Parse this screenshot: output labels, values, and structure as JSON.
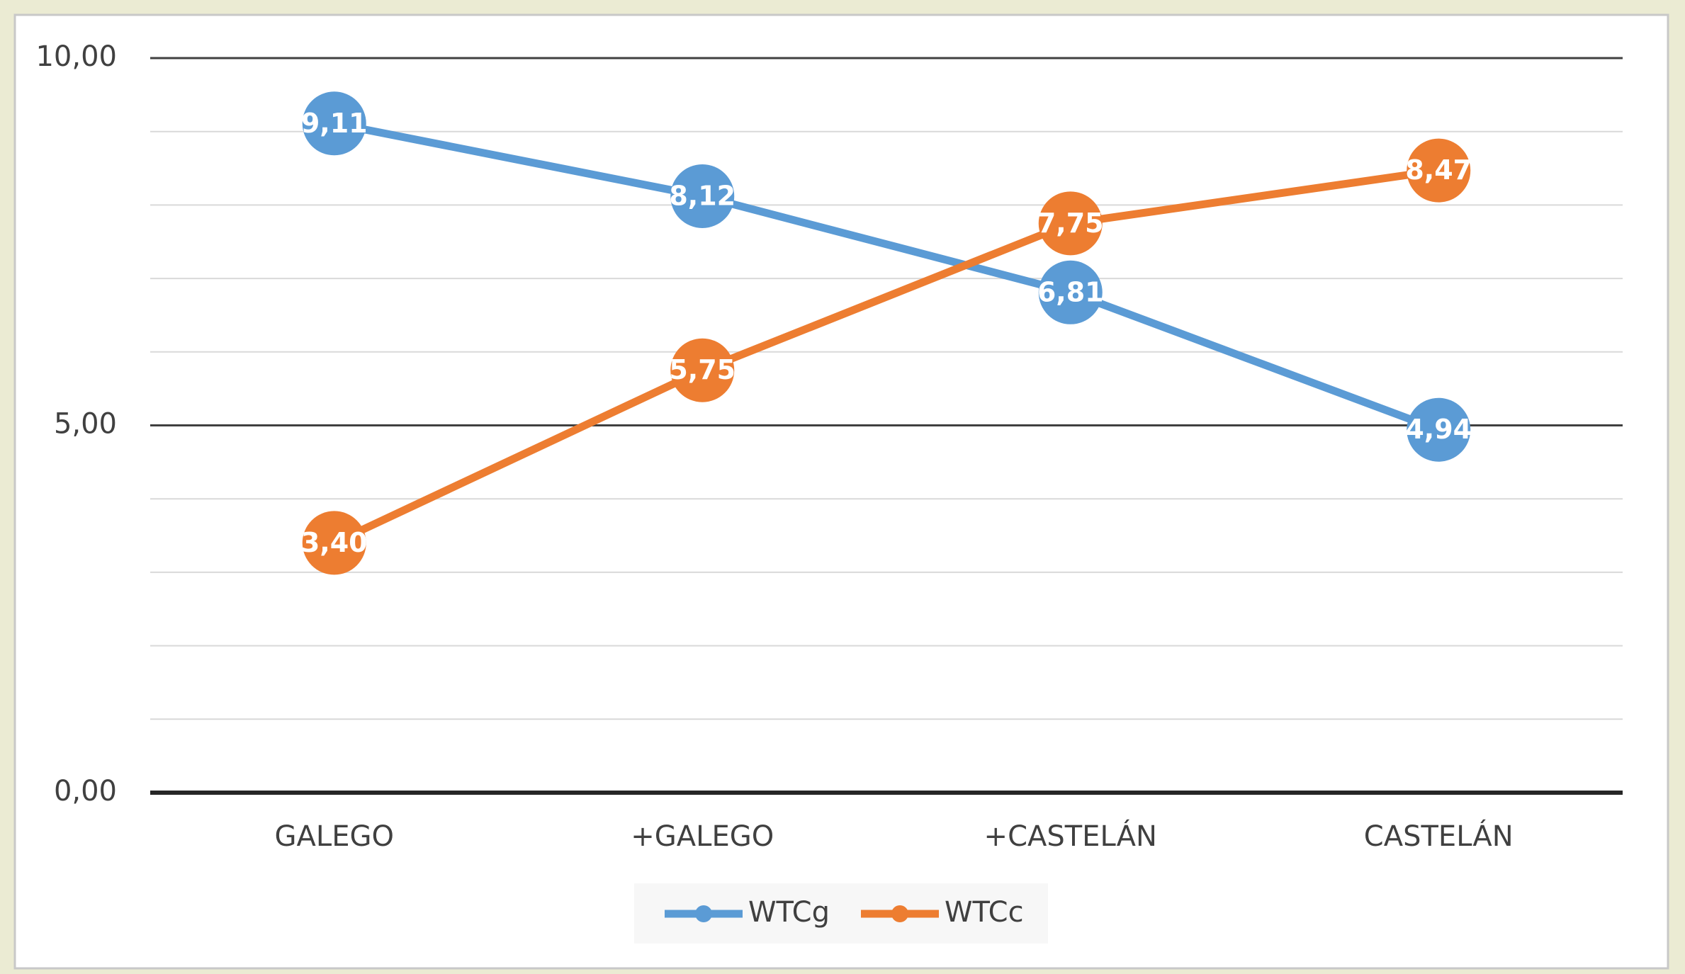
{
  "chart_data": {
    "type": "line",
    "categories": [
      "GALEGO",
      "+GALEGO",
      "+CASTELÁN",
      "CASTELÁN"
    ],
    "series": [
      {
        "name": "WTCg",
        "color": "#5b9bd5",
        "values": [
          9.11,
          8.12,
          6.81,
          4.94
        ],
        "value_labels": [
          "9,11",
          "8,12",
          "6,81",
          "4,94"
        ]
      },
      {
        "name": "WTCc",
        "color": "#ed7d31",
        "values": [
          3.4,
          5.75,
          7.75,
          8.47
        ],
        "value_labels": [
          "3,40",
          "5,75",
          "7,75",
          "8,47"
        ]
      }
    ],
    "ylim": [
      0,
      10
    ],
    "yticks": [
      {
        "value": 0,
        "label": "0,00"
      },
      {
        "value": 5,
        "label": "5,00"
      },
      {
        "value": 10,
        "label": "10,00"
      }
    ],
    "minor_yticks": [
      1,
      2,
      3,
      4,
      6,
      7,
      8,
      9
    ],
    "grid": true,
    "legend": "bottom"
  }
}
